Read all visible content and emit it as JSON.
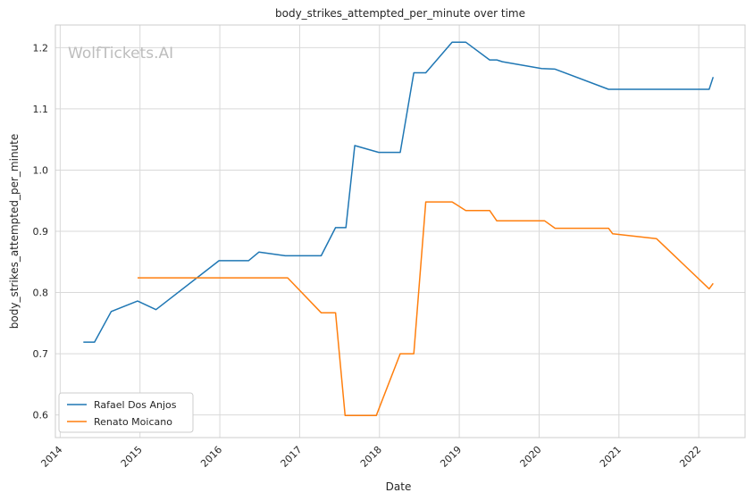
{
  "chart_data": {
    "type": "line",
    "title": "body_strikes_attempted_per_minute over time",
    "xlabel": "Date",
    "ylabel": "body_strikes_attempted_per_minute",
    "watermark": "WolfTickets.AI",
    "xlim": [
      2013.94,
      2022.58
    ],
    "ylim": [
      0.563,
      1.237
    ],
    "x_ticks": [
      2014,
      2015,
      2016,
      2017,
      2018,
      2019,
      2020,
      2021,
      2022
    ],
    "y_ticks": [
      0.6,
      0.7,
      0.8,
      0.9,
      1.0,
      1.1,
      1.2
    ],
    "y_tick_labels": [
      "0.6",
      "0.7",
      "0.8",
      "0.9",
      "1.0",
      "1.1",
      "1.2"
    ],
    "grid": true,
    "legend_position": "lower-left",
    "series": [
      {
        "name": "Rafael Dos Anjos",
        "color": "#1f77b4",
        "x": [
          2014.29,
          2014.43,
          2014.64,
          2014.97,
          2015.2,
          2015.99,
          2016.36,
          2016.49,
          2016.82,
          2017.27,
          2017.45,
          2017.58,
          2017.69,
          2017.99,
          2018.26,
          2018.43,
          2018.58,
          2018.91,
          2019.08,
          2019.38,
          2019.47,
          2019.54,
          2020.03,
          2020.2,
          2020.87,
          2021.2,
          2022.13,
          2022.18
        ],
        "y": [
          0.719,
          0.719,
          0.769,
          0.786,
          0.772,
          0.852,
          0.852,
          0.866,
          0.86,
          0.86,
          0.906,
          0.906,
          1.04,
          1.029,
          1.029,
          1.159,
          1.159,
          1.209,
          1.209,
          1.18,
          1.18,
          1.177,
          1.166,
          1.165,
          1.132,
          1.132,
          1.132,
          1.152
        ]
      },
      {
        "name": "Renato Moicano",
        "color": "#ff7f0e",
        "x": [
          2014.97,
          2016.85,
          2017.27,
          2017.45,
          2017.57,
          2017.96,
          2018.26,
          2018.43,
          2018.58,
          2018.91,
          2019.08,
          2019.38,
          2019.47,
          2020.07,
          2020.2,
          2020.87,
          2020.92,
          2021.47,
          2022.13,
          2022.18
        ],
        "y": [
          0.824,
          0.824,
          0.767,
          0.767,
          0.599,
          0.599,
          0.7,
          0.7,
          0.948,
          0.948,
          0.934,
          0.934,
          0.917,
          0.917,
          0.905,
          0.905,
          0.896,
          0.888,
          0.806,
          0.815
        ]
      }
    ]
  }
}
